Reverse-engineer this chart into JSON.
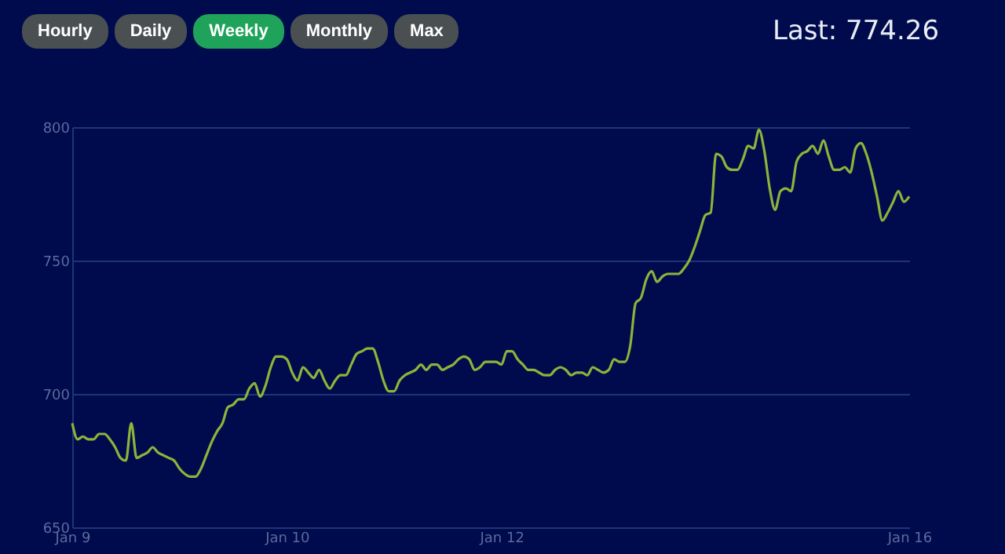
{
  "chart_data": {
    "type": "line",
    "subtitle": "Last: 774.26",
    "annotations": [
      "Hourly",
      "Daily",
      "Weekly",
      "Monthly",
      "Max"
    ],
    "categories": [
      "Jan 9",
      null,
      null,
      null,
      null,
      null,
      null,
      null,
      null,
      null,
      null,
      null,
      null,
      null,
      null,
      null,
      null,
      null,
      null,
      null,
      null,
      null,
      null,
      null,
      null,
      null,
      null,
      null,
      null,
      null,
      null,
      null,
      null,
      null,
      null,
      null,
      null,
      null,
      null,
      null,
      "Jan 10",
      null,
      null,
      null,
      null,
      null,
      null,
      null,
      null,
      null,
      null,
      null,
      null,
      null,
      null,
      null,
      null,
      null,
      null,
      null,
      null,
      null,
      null,
      null,
      null,
      null,
      null,
      null,
      null,
      null,
      null,
      null,
      null,
      null,
      null,
      null,
      null,
      null,
      null,
      null,
      "Jan 12",
      null,
      null,
      null,
      null,
      null,
      null,
      null,
      null,
      null,
      null,
      null,
      null,
      null,
      null,
      null,
      null,
      null,
      null,
      null,
      null,
      null,
      null,
      null,
      null,
      null,
      null,
      null,
      null,
      null,
      null,
      null,
      null,
      null,
      null,
      null,
      null,
      null,
      null,
      null,
      null,
      null,
      null,
      null,
      null,
      null,
      null,
      null,
      null,
      null,
      null,
      null,
      null,
      null,
      null,
      null,
      null,
      null,
      null,
      null,
      null,
      null,
      null,
      null,
      null,
      null,
      null,
      null,
      null,
      null,
      null,
      null,
      null,
      null,
      null,
      null,
      "Jan 16"
    ],
    "series": [
      {
        "color": "#8db33a",
        "values": [
          689,
          683,
          684,
          683,
          683,
          685,
          685,
          683,
          680,
          676,
          675,
          689,
          676,
          677,
          678,
          680,
          678,
          677,
          676,
          675,
          672,
          670,
          669,
          669,
          672,
          677,
          682,
          686,
          689,
          695,
          696,
          698,
          698,
          702,
          704,
          699,
          703,
          710,
          714,
          714,
          713,
          708,
          705,
          710,
          708,
          706,
          709,
          705,
          702,
          705,
          707,
          707,
          711,
          715,
          716,
          717,
          717,
          712,
          705,
          701,
          701,
          705,
          707,
          708,
          709,
          711,
          709,
          711,
          711,
          709,
          710,
          711,
          713,
          714,
          713,
          709,
          710,
          712,
          712,
          712,
          711,
          716,
          716,
          713,
          711,
          709,
          709,
          708,
          707,
          707,
          709,
          710,
          709,
          707,
          708,
          708,
          707,
          710,
          709,
          708,
          709,
          713,
          712,
          712,
          718,
          734,
          736,
          743,
          746,
          742,
          744,
          745,
          745,
          745,
          747,
          750,
          755,
          761,
          767,
          768,
          790,
          789,
          785,
          784,
          784,
          788,
          793,
          792,
          799,
          791,
          777,
          769,
          776,
          777,
          776,
          787,
          790,
          791,
          793,
          790,
          795,
          789,
          784,
          784,
          785,
          783,
          792,
          794,
          790,
          783,
          774,
          765,
          768,
          772,
          776,
          772,
          774
        ]
      }
    ],
    "ylim": [
      650,
      800
    ],
    "yticks": [
      650,
      700,
      750,
      800
    ],
    "grid": "y",
    "marker": "none",
    "line_style": "solid"
  }
}
